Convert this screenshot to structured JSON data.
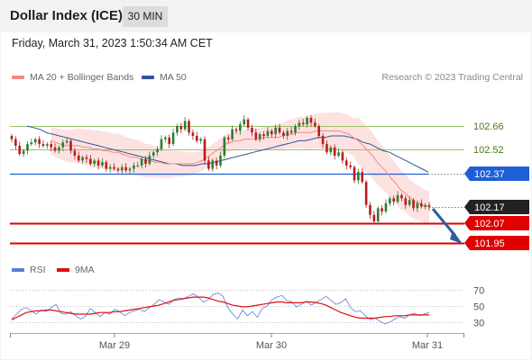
{
  "header": {
    "title": "Dollar Index (ICE)",
    "timeframe": "30 MIN",
    "datetime": "Friday, March 31, 2023 1:50:34 AM CET"
  },
  "legend": {
    "ma20": {
      "label": "MA 20 + Bollinger Bands",
      "color": "#f28b82"
    },
    "ma50": {
      "label": "MA 50",
      "color": "#2f5496"
    },
    "credit": "Research © 2023 Trading Central"
  },
  "rsi_legend": {
    "rsi": {
      "label": "RSI",
      "color": "#5b7fd4"
    },
    "ma9": {
      "label": "9MA",
      "color": "#e01010"
    }
  },
  "colors": {
    "candle_up": "#2e7d32",
    "candle_down": "#b71c1c",
    "band_fill": "#fde2e2",
    "resistance": "#7cb342",
    "pivot": "#1f5fd6",
    "support": "#e00000",
    "arrow": "#2c5f9e",
    "last_price_label": "#222222"
  },
  "chart_data": [
    {
      "type": "candlestick",
      "title": "Dollar Index (ICE)",
      "timeframe": "30 MIN",
      "x_ticks": [
        "Mar 29",
        "Mar 30",
        "Mar 31"
      ],
      "ylim": [
        101.9,
        102.78
      ],
      "levels": [
        {
          "name": "resistance-2",
          "value": 102.66,
          "label": "102.66",
          "kind": "resistance"
        },
        {
          "name": "resistance-1",
          "value": 102.52,
          "label": "102.52",
          "kind": "resistance"
        },
        {
          "name": "pivot",
          "value": 102.37,
          "label": "102.37",
          "kind": "pivot"
        },
        {
          "name": "last-price",
          "value": 102.17,
          "label": "102.17",
          "kind": "last"
        },
        {
          "name": "support-1",
          "value": 102.07,
          "label": "102.07",
          "kind": "support"
        },
        {
          "name": "support-2",
          "value": 101.95,
          "label": "101.95",
          "kind": "support"
        }
      ],
      "close_series": [
        102.58,
        102.54,
        102.49,
        102.51,
        102.55,
        102.56,
        102.58,
        102.55,
        102.54,
        102.55,
        102.53,
        102.51,
        102.53,
        102.56,
        102.57,
        102.51,
        102.48,
        102.45,
        102.47,
        102.46,
        102.43,
        102.45,
        102.42,
        102.44,
        102.4,
        102.41,
        102.4,
        102.39,
        102.41,
        102.39,
        102.4,
        102.42,
        102.42,
        102.46,
        102.43,
        102.48,
        102.5,
        102.52,
        102.58,
        102.59,
        102.55,
        102.62,
        102.66,
        102.64,
        102.69,
        102.62,
        102.6,
        102.57,
        102.58,
        102.45,
        102.4,
        102.45,
        102.42,
        102.48,
        102.59,
        102.58,
        102.64,
        102.63,
        102.67,
        102.7,
        102.65,
        102.62,
        102.58,
        102.61,
        102.6,
        102.63,
        102.61,
        102.65,
        102.62,
        102.6,
        102.63,
        102.62,
        102.66,
        102.68,
        102.67,
        102.71,
        102.68,
        102.66,
        102.6,
        102.55,
        102.5,
        102.53,
        102.48,
        102.5,
        102.45,
        102.42,
        102.41,
        102.33,
        102.38,
        102.32,
        102.18,
        102.12,
        102.08,
        102.16,
        102.14,
        102.19,
        102.22,
        102.2,
        102.24,
        102.22,
        102.18,
        102.21,
        102.16,
        102.19,
        102.17,
        102.18,
        102.17
      ],
      "ma20": [
        102.57,
        102.56,
        102.55,
        102.54,
        102.54,
        102.54,
        102.54,
        102.53,
        102.53,
        102.52,
        102.52,
        102.51,
        102.51,
        102.5,
        102.5,
        102.49,
        102.48,
        102.47,
        102.47,
        102.46,
        102.45,
        102.45,
        102.44,
        102.44,
        102.43,
        102.43,
        102.43,
        102.43,
        102.43,
        102.43,
        102.43,
        102.44,
        102.45,
        102.47,
        102.49,
        102.51,
        102.53,
        102.55,
        102.56,
        102.57,
        102.57,
        102.58,
        102.58,
        102.58,
        102.58,
        102.59,
        102.59,
        102.59,
        102.59,
        102.6,
        102.61,
        102.61,
        102.62,
        102.62,
        102.62,
        102.62,
        102.63,
        102.63,
        102.63,
        102.63,
        102.63,
        102.63,
        102.62,
        102.61,
        102.59,
        102.57,
        102.54,
        102.51,
        102.48,
        102.44,
        102.41,
        102.38,
        102.34,
        102.31,
        102.27,
        102.25,
        102.22,
        102.2,
        102.19,
        102.17,
        102.17
      ],
      "ma50": [
        102.66,
        102.65,
        102.64,
        102.62,
        102.61,
        102.6,
        102.59,
        102.58,
        102.57,
        102.56,
        102.55,
        102.54,
        102.53,
        102.52,
        102.51,
        102.5,
        102.49,
        102.48,
        102.47,
        102.46,
        102.45,
        102.44,
        102.43,
        102.43,
        102.42,
        102.42,
        102.42,
        102.43,
        102.43,
        102.44,
        102.45,
        102.46,
        102.47,
        102.48,
        102.49,
        102.5,
        102.51,
        102.52,
        102.53,
        102.54,
        102.55,
        102.56,
        102.57,
        102.57,
        102.58,
        102.59,
        102.59,
        102.6,
        102.6,
        102.6,
        102.59,
        102.58,
        102.56,
        102.55,
        102.53,
        102.51,
        102.5,
        102.48,
        102.46,
        102.44,
        102.42,
        102.4,
        102.38
      ]
    },
    {
      "type": "line",
      "title": "RSI",
      "ylim": [
        20,
        80
      ],
      "y_ticks": [
        70,
        50,
        30
      ],
      "series": [
        {
          "name": "RSI",
          "values": [
            34,
            40,
            46,
            48,
            44,
            40,
            45,
            43,
            48,
            52,
            41,
            40,
            43,
            38,
            34,
            37,
            47,
            42,
            37,
            42,
            40,
            46,
            43,
            38,
            42,
            44,
            46,
            43,
            48,
            52,
            58,
            55,
            52,
            58,
            60,
            59,
            62,
            65,
            61,
            55,
            58,
            64,
            66,
            62,
            48,
            40,
            34,
            45,
            38,
            43,
            36,
            47,
            50,
            58,
            61,
            63,
            57,
            55,
            49,
            52,
            56,
            51,
            55,
            58,
            62,
            57,
            52,
            54,
            59,
            48,
            43,
            44,
            38,
            33,
            35,
            31,
            28,
            30,
            34,
            37,
            35,
            39,
            41,
            38,
            40,
            42
          ]
        },
        {
          "name": "9MA",
          "values": [
            33,
            36,
            39,
            42,
            43,
            44,
            44,
            45,
            45,
            44,
            43,
            42,
            41,
            40,
            40,
            40,
            40,
            41,
            42,
            42,
            42,
            43,
            43,
            44,
            45,
            46,
            47,
            48,
            49,
            50,
            51,
            53,
            55,
            57,
            58,
            59,
            60,
            61,
            61,
            61,
            60,
            58,
            56,
            55,
            53,
            51,
            50,
            49,
            49,
            50,
            51,
            52,
            53,
            54,
            55,
            55,
            54,
            54,
            54,
            54,
            55,
            55,
            54,
            53,
            51,
            48,
            45,
            42,
            40,
            38,
            36,
            35,
            35,
            35,
            35,
            36,
            37,
            37,
            38,
            38,
            38,
            39,
            39,
            39,
            39,
            39
          ]
        }
      ]
    }
  ]
}
